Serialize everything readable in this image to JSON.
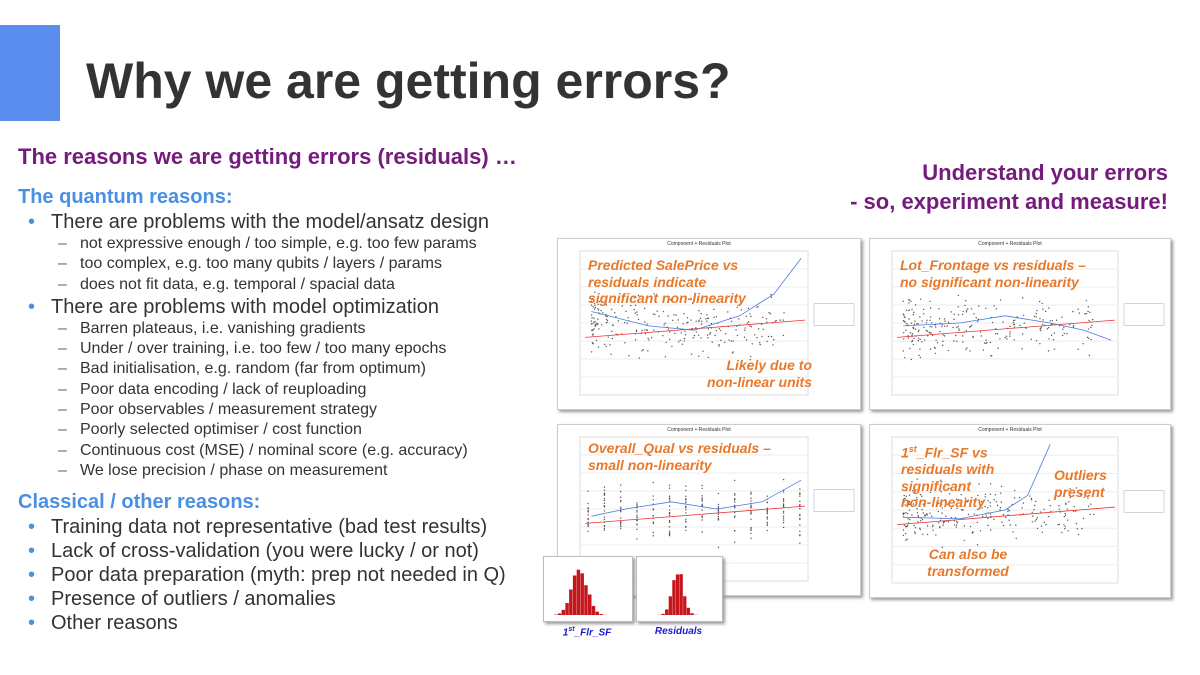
{
  "title": "Why we are getting errors?",
  "subtitle": "The reasons we are getting errors (residuals) …",
  "callout": [
    "Understand your errors",
    "- so, experiment and measure!"
  ],
  "sections": [
    {
      "heading": "The quantum reasons:",
      "items": [
        {
          "text": "There are problems with the model/ansatz design",
          "subitems": [
            "not expressive enough / too simple, e.g. too few params",
            "too complex, e.g. too many qubits / layers / params",
            "does not fit data, e.g. temporal / spacial data"
          ]
        },
        {
          "text": "There are problems with model optimization",
          "subitems": [
            "Barren plateaus, i.e. vanishing gradients",
            "Under / over training, i.e. too few / too many epochs",
            "Bad initialisation, e.g. random (far from optimum)",
            "Poor data encoding / lack of reuploading",
            "Poor observables / measurement strategy",
            "Poorly selected optimiser / cost function",
            "Continuous cost (MSE) / nominal score (e.g. accuracy)",
            "We lose precision / phase on measurement"
          ]
        }
      ]
    },
    {
      "heading": "Classical / other reasons:",
      "items": [
        {
          "text": "Training data not representative (bad test results)",
          "subitems": []
        },
        {
          "text": "Lack of cross-validation (you were lucky / or not)",
          "subitems": []
        },
        {
          "text": "Poor data preparation (myth: prep not needed in Q)",
          "subitems": []
        },
        {
          "text": "Presence of outliers / anomalies",
          "subitems": []
        },
        {
          "text": "Other reasons",
          "subitems": []
        }
      ]
    }
  ],
  "plots": [
    {
      "title": "Component + Residuals Plot",
      "notes": [
        {
          "lines": [
            "Predicted SalePrice vs",
            "residuals indicate",
            "significant non-linearity"
          ]
        },
        {
          "lines": [
            "Likely due to",
            "non-linear units"
          ]
        }
      ]
    },
    {
      "title": "Component + Residuals Plot",
      "notes": [
        {
          "lines": [
            "Lot_Frontage vs residuals –",
            "no significant non-linearity"
          ]
        }
      ]
    },
    {
      "title": "Component + Residuals Plot",
      "notes": [
        {
          "lines": [
            "Overall_Qual vs residuals –",
            "small non-linearity"
          ]
        }
      ]
    },
    {
      "title": "Component + Residuals Plot",
      "notes": [
        {
          "lines": [
            "_Flr_SF vs",
            "residuals with",
            "significant",
            "non-linearity"
          ],
          "lead": "1",
          "sup": "st"
        },
        {
          "lines": [
            "Outliers",
            "present"
          ]
        },
        {
          "lines": [
            "Can also be",
            "transformed"
          ]
        }
      ]
    }
  ],
  "histograms": [
    {
      "lead": "1",
      "sup": "st",
      "label": "_Flr_SF"
    },
    {
      "label": "Residuals"
    }
  ]
}
